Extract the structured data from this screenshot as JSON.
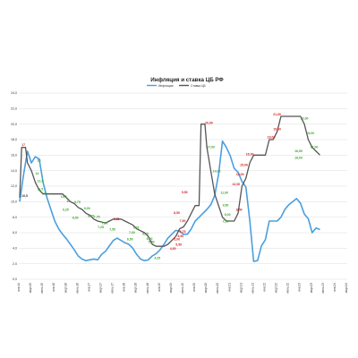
{
  "colors": {
    "inflation": "#4a9fdf",
    "rate": "#555555",
    "label_red": "#d32020",
    "label_green": "#3aa62a",
    "grid": "#dedede"
  },
  "chart_data": {
    "type": "line",
    "title": "Инфляция и ставка ЦБ РФ",
    "legend_placement": "top-center",
    "grid": true,
    "ylim": [
      0,
      24
    ],
    "yticks": [
      "0,0",
      "2,0",
      "4,0",
      "6,0",
      "8,0",
      "10,0",
      "12,0",
      "14,0",
      "16,0",
      "18,0",
      "20,0",
      "22,0",
      "24,0"
    ],
    "xlim": [
      0,
      168
    ],
    "xticks": [
      {
        "label": "янв.14",
        "x": 0
      },
      {
        "label": "март.15",
        "x": 6
      },
      {
        "label": "июнь.15",
        "x": 12
      },
      {
        "label": "янв.16",
        "x": 18
      },
      {
        "label": "март.16",
        "x": 24
      },
      {
        "label": "июнь.16",
        "x": 30
      },
      {
        "label": "янв.17",
        "x": 36
      },
      {
        "label": "март.17",
        "x": 42
      },
      {
        "label": "июнь.17",
        "x": 48
      },
      {
        "label": "янв.18",
        "x": 54
      },
      {
        "label": "март.18",
        "x": 60
      },
      {
        "label": "июнь.18",
        "x": 66
      },
      {
        "label": "янв.19",
        "x": 72
      },
      {
        "label": "март.19",
        "x": 78
      },
      {
        "label": "июнь.19",
        "x": 84
      },
      {
        "label": "янв.20",
        "x": 90
      },
      {
        "label": "март.20",
        "x": 96
      },
      {
        "label": "июнь.20",
        "x": 102
      },
      {
        "label": "янв.21",
        "x": 108
      },
      {
        "label": "март.21",
        "x": 114
      },
      {
        "label": "июнь.21",
        "x": 120
      },
      {
        "label": "янв.22",
        "x": 126
      },
      {
        "label": "март.22",
        "x": 132
      },
      {
        "label": "июнь.22",
        "x": 138
      },
      {
        "label": "янв.23",
        "x": 144
      },
      {
        "label": "март.23",
        "x": 150
      },
      {
        "label": "июнь.23",
        "x": 156
      },
      {
        "label": "янв.24",
        "x": 162
      },
      {
        "label": "март.24",
        "x": 168
      }
    ],
    "series": [
      {
        "name": "Инфляция",
        "values": [
          [
            0,
            10.0
          ],
          [
            2,
            13.5
          ],
          [
            4,
            16.5
          ],
          [
            6,
            15.0
          ],
          [
            8,
            15.8
          ],
          [
            10,
            15.5
          ],
          [
            12,
            12.5
          ],
          [
            14,
            10.5
          ],
          [
            16,
            9.0
          ],
          [
            18,
            7.5
          ],
          [
            20,
            6.5
          ],
          [
            22,
            5.8
          ],
          [
            24,
            5.2
          ],
          [
            26,
            4.5
          ],
          [
            28,
            3.8
          ],
          [
            30,
            3.0
          ],
          [
            32,
            2.6
          ],
          [
            34,
            2.4
          ],
          [
            36,
            2.5
          ],
          [
            38,
            2.6
          ],
          [
            40,
            2.5
          ],
          [
            42,
            3.2
          ],
          [
            44,
            3.6
          ],
          [
            46,
            4.3
          ],
          [
            48,
            5.0
          ],
          [
            50,
            5.3
          ],
          [
            52,
            5.0
          ],
          [
            54,
            4.7
          ],
          [
            56,
            4.5
          ],
          [
            58,
            4.0
          ],
          [
            60,
            3.2
          ],
          [
            62,
            2.6
          ],
          [
            64,
            2.4
          ],
          [
            66,
            2.5
          ],
          [
            68,
            3.0
          ],
          [
            70,
            3.3
          ],
          [
            72,
            3.8
          ],
          [
            74,
            4.5
          ],
          [
            76,
            5.3
          ],
          [
            78,
            5.8
          ],
          [
            80,
            6.3
          ],
          [
            82,
            6.2
          ],
          [
            84,
            5.8
          ],
          [
            86,
            5.8
          ],
          [
            88,
            6.5
          ],
          [
            90,
            7.5
          ],
          [
            92,
            8.0
          ],
          [
            94,
            8.5
          ],
          [
            96,
            9.0
          ],
          [
            98,
            9.6
          ],
          [
            100,
            10.8
          ],
          [
            102,
            13.5
          ],
          [
            104,
            17.8
          ],
          [
            106,
            17.0
          ],
          [
            108,
            15.9
          ],
          [
            110,
            14.3
          ],
          [
            112,
            13.8
          ],
          [
            114,
            12.6
          ],
          [
            116,
            11.9
          ],
          [
            118,
            7.6
          ],
          [
            120,
            2.3
          ],
          [
            122,
            2.4
          ],
          [
            124,
            4.3
          ],
          [
            126,
            5.1
          ],
          [
            128,
            7.5
          ],
          [
            130,
            7.5
          ],
          [
            132,
            7.5
          ],
          [
            134,
            8.0
          ],
          [
            136,
            9.0
          ],
          [
            138,
            9.6
          ],
          [
            140,
            10.0
          ],
          [
            142,
            10.4
          ],
          [
            144,
            9.8
          ],
          [
            146,
            8.4
          ],
          [
            148,
            7.8
          ],
          [
            150,
            6.0
          ],
          [
            152,
            6.6
          ],
          [
            154,
            6.4
          ]
        ]
      },
      {
        "name": "Ставка ЦБ",
        "values": [
          [
            0,
            10.5
          ],
          [
            1,
            17.0
          ],
          [
            3,
            17.0
          ],
          [
            4,
            15.0
          ],
          [
            6,
            14.0
          ],
          [
            8,
            12.5
          ],
          [
            10,
            11.5
          ],
          [
            12,
            11.0
          ],
          [
            16,
            11.0
          ],
          [
            22,
            11.0
          ],
          [
            24,
            10.5
          ],
          [
            26,
            10.0
          ],
          [
            28,
            9.75
          ],
          [
            30,
            9.25
          ],
          [
            32,
            9.0
          ],
          [
            34,
            8.5
          ],
          [
            36,
            8.25
          ],
          [
            38,
            7.75
          ],
          [
            40,
            7.5
          ],
          [
            44,
            7.25
          ],
          [
            46,
            7.5
          ],
          [
            48,
            7.75
          ],
          [
            52,
            7.75
          ],
          [
            54,
            7.5
          ],
          [
            56,
            7.25
          ],
          [
            58,
            7.0
          ],
          [
            60,
            6.5
          ],
          [
            62,
            6.25
          ],
          [
            64,
            6.0
          ],
          [
            66,
            5.5
          ],
          [
            68,
            4.5
          ],
          [
            70,
            4.25
          ],
          [
            74,
            4.25
          ],
          [
            76,
            4.5
          ],
          [
            78,
            5.0
          ],
          [
            80,
            5.5
          ],
          [
            82,
            6.5
          ],
          [
            84,
            6.75
          ],
          [
            86,
            7.5
          ],
          [
            88,
            8.5
          ],
          [
            90,
            9.5
          ],
          [
            92,
            9.5
          ],
          [
            93,
            20.0
          ],
          [
            95,
            20.0
          ],
          [
            96,
            17.0
          ],
          [
            98,
            14.0
          ],
          [
            100,
            11.0
          ],
          [
            102,
            9.5
          ],
          [
            104,
            8.0
          ],
          [
            106,
            7.5
          ],
          [
            110,
            7.5
          ],
          [
            112,
            8.5
          ],
          [
            114,
            12.0
          ],
          [
            116,
            13.0
          ],
          [
            118,
            15.0
          ],
          [
            120,
            16.0
          ],
          [
            126,
            16.0
          ],
          [
            128,
            18.0
          ],
          [
            130,
            18.0
          ],
          [
            132,
            19.0
          ],
          [
            134,
            21.0
          ],
          [
            144,
            21.0
          ],
          [
            146,
            20.0
          ],
          [
            148,
            18.0
          ],
          [
            150,
            17.0
          ],
          [
            152,
            16.5
          ],
          [
            154,
            16.0
          ]
        ]
      }
    ],
    "annotations": [
      {
        "text": "10,5",
        "x": 1,
        "y": 10.6,
        "color": "dark"
      },
      {
        "text": "17",
        "x": 1,
        "y": 17.2,
        "color": "red"
      },
      {
        "text": "15",
        "x": 9,
        "y": 15.2,
        "color": "green"
      },
      {
        "text": "14",
        "x": 8,
        "y": 13.5,
        "color": "green"
      },
      {
        "text": "12,5",
        "x": 9,
        "y": 12.5,
        "color": "green"
      },
      {
        "text": "11,5",
        "x": 9,
        "y": 11.5,
        "color": "green"
      },
      {
        "text": "11",
        "x": 12,
        "y": 10.9,
        "color": "green"
      },
      {
        "text": "10,5",
        "x": 21,
        "y": 10.5,
        "color": "green"
      },
      {
        "text": "10",
        "x": 24,
        "y": 9.9,
        "color": "green"
      },
      {
        "text": "9,75",
        "x": 28,
        "y": 9.8,
        "color": "green"
      },
      {
        "text": "9,25",
        "x": 22,
        "y": 8.8,
        "color": "green"
      },
      {
        "text": "9,00",
        "x": 33,
        "y": 9.0,
        "color": "green"
      },
      {
        "text": "8,50",
        "x": 27,
        "y": 7.8,
        "color": "green"
      },
      {
        "text": "8,25",
        "x": 35,
        "y": 8.0,
        "color": "green"
      },
      {
        "text": "7,75",
        "x": 38,
        "y": 7.9,
        "color": "green"
      },
      {
        "text": "7,75",
        "x": 48,
        "y": 7.6,
        "color": "red"
      },
      {
        "text": "7,50",
        "x": 42,
        "y": 7.1,
        "color": "green"
      },
      {
        "text": "7,25",
        "x": 40,
        "y": 6.6,
        "color": "green"
      },
      {
        "text": "7,50",
        "x": 46,
        "y": 6.3,
        "color": "green"
      },
      {
        "text": "7,25",
        "x": 58,
        "y": 6.5,
        "color": "green"
      },
      {
        "text": "7,00",
        "x": 56,
        "y": 5.9,
        "color": "green"
      },
      {
        "text": "6,50",
        "x": 55,
        "y": 5.0,
        "color": "green"
      },
      {
        "text": "6,25",
        "x": 63,
        "y": 5.7,
        "color": "green"
      },
      {
        "text": "6,00",
        "x": 65,
        "y": 5.1,
        "color": "green"
      },
      {
        "text": "5,50",
        "x": 66,
        "y": 4.7,
        "color": "green"
      },
      {
        "text": "4,25",
        "x": 69,
        "y": 2.6,
        "color": "green"
      },
      {
        "text": "4,50",
        "x": 77,
        "y": 3.8,
        "color": "red"
      },
      {
        "text": "5,00",
        "x": 79,
        "y": 5.0,
        "color": "red"
      },
      {
        "text": "5,50",
        "x": 80,
        "y": 4.3,
        "color": "red"
      },
      {
        "text": "6,50",
        "x": 81,
        "y": 5.4,
        "color": "red"
      },
      {
        "text": "6,75",
        "x": 82,
        "y": 6.0,
        "color": "red"
      },
      {
        "text": "7,50",
        "x": 82,
        "y": 7.4,
        "color": "red"
      },
      {
        "text": "8,50",
        "x": 79,
        "y": 8.4,
        "color": "red"
      },
      {
        "text": "9,50",
        "x": 83,
        "y": 11.1,
        "color": "red"
      },
      {
        "text": "20,00",
        "x": 95,
        "y": 20.0,
        "color": "red"
      },
      {
        "text": "17,00",
        "x": 96,
        "y": 16.9,
        "color": "green"
      },
      {
        "text": "14,00",
        "x": 99,
        "y": 13.8,
        "color": "green"
      },
      {
        "text": "11,00",
        "x": 103,
        "y": 11.0,
        "color": "green"
      },
      {
        "text": "9,50",
        "x": 104,
        "y": 9.4,
        "color": "green"
      },
      {
        "text": "8,00",
        "x": 105,
        "y": 8.2,
        "color": "green"
      },
      {
        "text": "7,50",
        "x": 104,
        "y": 7.3,
        "color": "green"
      },
      {
        "text": "8,50",
        "x": 111,
        "y": 8.8,
        "color": "red"
      },
      {
        "text": "12,00",
        "x": 109,
        "y": 12.1,
        "color": "red"
      },
      {
        "text": "13,00",
        "x": 111,
        "y": 13.4,
        "color": "red"
      },
      {
        "text": "15,00",
        "x": 113,
        "y": 14.6,
        "color": "red"
      },
      {
        "text": "16,00",
        "x": 116,
        "y": 16.0,
        "color": "red"
      },
      {
        "text": "18,00",
        "x": 127,
        "y": 18.2,
        "color": "red"
      },
      {
        "text": "19,00",
        "x": 130,
        "y": 19.2,
        "color": "red"
      },
      {
        "text": "21,00",
        "x": 130,
        "y": 21.1,
        "color": "red"
      },
      {
        "text": "20,00",
        "x": 144,
        "y": 20.6,
        "color": "green"
      },
      {
        "text": "18,00",
        "x": 147,
        "y": 18.7,
        "color": "green"
      },
      {
        "text": "17,00",
        "x": 149,
        "y": 16.9,
        "color": "green"
      },
      {
        "text": "16,50",
        "x": 141,
        "y": 16.4,
        "color": "green"
      },
      {
        "text": "16,00",
        "x": 141,
        "y": 15.5,
        "color": "green"
      }
    ]
  }
}
